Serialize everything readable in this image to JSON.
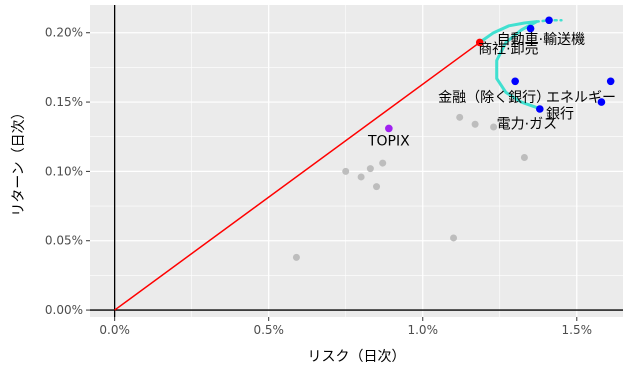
{
  "chart_data": {
    "type": "scatter",
    "title": "",
    "xlabel": "リスク（日次）",
    "ylabel": "リターン（日次）",
    "xlim": [
      -0.0008,
      0.0165
    ],
    "ylim": [
      -5e-05,
      0.0022
    ],
    "x_ticks": [
      {
        "value": 0.0,
        "label": "0.0%"
      },
      {
        "value": 0.005,
        "label": "0.5%"
      },
      {
        "value": 0.01,
        "label": "1.0%"
      },
      {
        "value": 0.015,
        "label": "1.5%"
      }
    ],
    "y_ticks": [
      {
        "value": 0.0,
        "label": "0.00%"
      },
      {
        "value": 0.0005,
        "label": "0.05%"
      },
      {
        "value": 0.001,
        "label": "0.10%"
      },
      {
        "value": 0.0015,
        "label": "0.15%"
      },
      {
        "value": 0.002,
        "label": "0.20%"
      }
    ],
    "grid": true,
    "colors": {
      "panel": "#ebebeb",
      "grid": "#ffffff",
      "gray_points": "#bdbdbd",
      "highlight_points": "#0000ff",
      "index_point": "#a020f0",
      "tangency_point": "#ff0000",
      "capital_market_line": "#ff0000",
      "frontier": "#40e0d0",
      "zero_axes": "#000000"
    },
    "gray_points": [
      {
        "x": 0.0059,
        "y": 0.00038
      },
      {
        "x": 0.0075,
        "y": 0.001
      },
      {
        "x": 0.008,
        "y": 0.00096
      },
      {
        "x": 0.0083,
        "y": 0.00102
      },
      {
        "x": 0.0085,
        "y": 0.00089
      },
      {
        "x": 0.0087,
        "y": 0.00106
      },
      {
        "x": 0.011,
        "y": 0.00052
      },
      {
        "x": 0.0112,
        "y": 0.00139
      },
      {
        "x": 0.0117,
        "y": 0.00134
      },
      {
        "x": 0.0123,
        "y": 0.00132
      },
      {
        "x": 0.0133,
        "y": 0.0011
      }
    ],
    "highlight_points": [
      {
        "x": 0.013,
        "y": 0.00165
      },
      {
        "x": 0.0135,
        "y": 0.00203
      },
      {
        "x": 0.0138,
        "y": 0.00145
      },
      {
        "x": 0.0141,
        "y": 0.00209
      },
      {
        "x": 0.0158,
        "y": 0.0015
      },
      {
        "x": 0.0161,
        "y": 0.00165
      }
    ],
    "index_point": {
      "x": 0.0089,
      "y": 0.00131,
      "label": "TOPIX"
    },
    "tangency_point": {
      "x": 0.01185,
      "y": 0.00193
    },
    "capital_market_line": {
      "from": {
        "x": 0.0,
        "y": 0.0
      },
      "to": {
        "x": 0.01185,
        "y": 0.00193
      }
    },
    "frontier_solid": [
      {
        "x": 0.01185,
        "y": 0.00193
      },
      {
        "x": 0.0123,
        "y": 0.002
      },
      {
        "x": 0.0128,
        "y": 0.00205
      },
      {
        "x": 0.0133,
        "y": 0.00207
      },
      {
        "x": 0.0137,
        "y": 0.00208
      },
      {
        "x": 0.0132,
        "y": 0.00202
      },
      {
        "x": 0.0127,
        "y": 0.00193
      },
      {
        "x": 0.0124,
        "y": 0.0018
      },
      {
        "x": 0.0124,
        "y": 0.00167
      },
      {
        "x": 0.0127,
        "y": 0.00157
      },
      {
        "x": 0.0132,
        "y": 0.0015
      },
      {
        "x": 0.0137,
        "y": 0.00146
      }
    ],
    "frontier_dotted": [
      {
        "x": 0.0137,
        "y": 0.00208
      },
      {
        "x": 0.0141,
        "y": 0.00209
      },
      {
        "x": 0.0145,
        "y": 0.00209
      }
    ],
    "annotations": [
      {
        "text": "自動車·輸送機",
        "x": 0.0124,
        "y": 0.00192
      },
      {
        "text": "商社·卸売",
        "x": 0.0118,
        "y": 0.00185
      },
      {
        "text": "金融（除く銀行）",
        "x": 0.0105,
        "y": 0.0015
      },
      {
        "text": "エネルギー",
        "x": 0.014,
        "y": 0.0015
      },
      {
        "text": "電力·ガス",
        "x": 0.0124,
        "y": 0.00131
      },
      {
        "text": "銀行",
        "x": 0.014,
        "y": 0.00138
      }
    ]
  }
}
